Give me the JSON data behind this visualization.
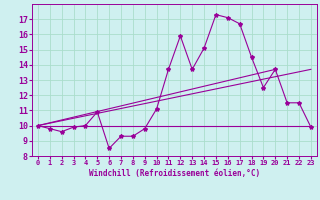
{
  "xlabel": "Windchill (Refroidissement éolien,°C)",
  "background_color": "#cff0f0",
  "grid_color": "#aaddcc",
  "line_color": "#990099",
  "x_data": [
    0,
    1,
    2,
    3,
    4,
    5,
    6,
    7,
    8,
    9,
    10,
    11,
    12,
    13,
    14,
    15,
    16,
    17,
    18,
    19,
    20,
    21,
    22,
    23
  ],
  "main_line": [
    10.0,
    9.8,
    9.6,
    9.9,
    10.0,
    10.9,
    8.5,
    9.3,
    9.3,
    9.8,
    11.1,
    13.7,
    15.9,
    13.7,
    15.1,
    17.3,
    17.1,
    16.7,
    14.5,
    12.5,
    13.7,
    11.5,
    11.5,
    9.9
  ],
  "trend_line1_x": [
    0,
    23
  ],
  "trend_line1_y": [
    10.0,
    10.0
  ],
  "trend_line2_x": [
    0,
    20
  ],
  "trend_line2_y": [
    10.0,
    13.7
  ],
  "trend_line3_x": [
    0,
    23
  ],
  "trend_line3_y": [
    10.0,
    13.7
  ],
  "ylim": [
    8,
    18
  ],
  "xlim": [
    -0.5,
    23.5
  ],
  "yticks": [
    8,
    9,
    10,
    11,
    12,
    13,
    14,
    15,
    16,
    17
  ],
  "xticks": [
    0,
    1,
    2,
    3,
    4,
    5,
    6,
    7,
    8,
    9,
    10,
    11,
    12,
    13,
    14,
    15,
    16,
    17,
    18,
    19,
    20,
    21,
    22,
    23
  ]
}
